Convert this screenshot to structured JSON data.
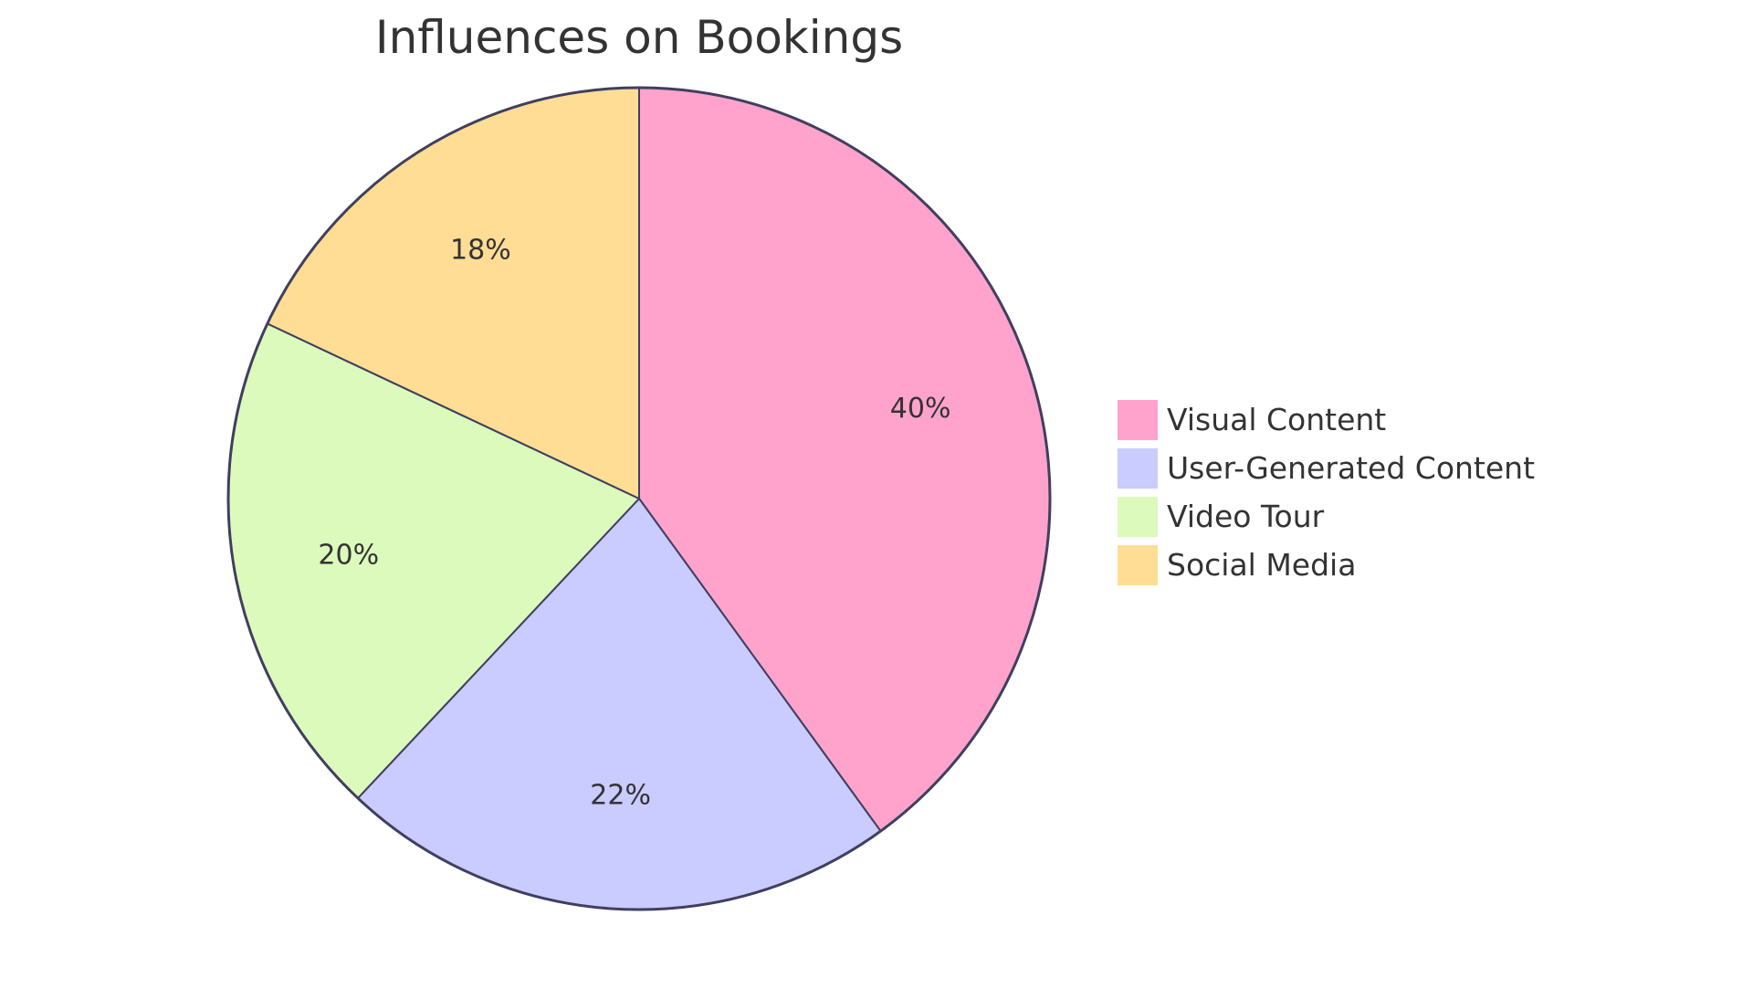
{
  "chart_data": {
    "type": "pie",
    "title": "Influences on Bookings",
    "categories": [
      "Visual Content",
      "User-Generated Content",
      "Video Tour",
      "Social Media"
    ],
    "values": [
      40,
      22,
      20,
      18
    ],
    "labels": [
      "40%",
      "22%",
      "20%",
      "18%"
    ],
    "colors": [
      "#FFA3CC",
      "#CACBFF",
      "#DCFABC",
      "#FFDD94"
    ],
    "stroke_color": "#3F3F5F",
    "legend_position": "right"
  }
}
